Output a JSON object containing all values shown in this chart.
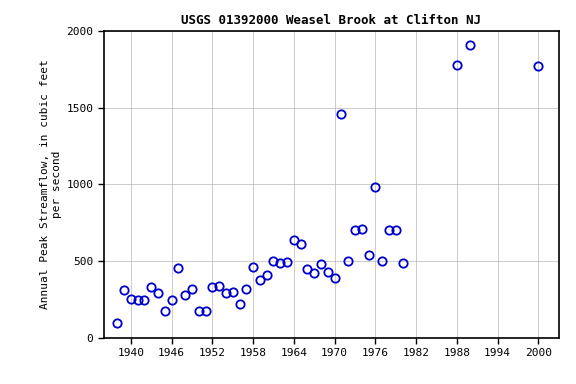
{
  "title": "USGS 01392000 Weasel Brook at Clifton NJ",
  "ylabel": "Annual Peak Streamflow, in cubic feet\nper second",
  "xlim": [
    1936,
    2003
  ],
  "ylim": [
    0,
    2000
  ],
  "xticks": [
    1940,
    1946,
    1952,
    1958,
    1964,
    1970,
    1976,
    1982,
    1988,
    1994,
    2000
  ],
  "yticks": [
    0,
    500,
    1000,
    1500,
    2000
  ],
  "marker_color": "#0000cc",
  "marker_size": 6,
  "data": [
    [
      1938,
      100
    ],
    [
      1939,
      310
    ],
    [
      1940,
      255
    ],
    [
      1941,
      245
    ],
    [
      1942,
      245
    ],
    [
      1943,
      330
    ],
    [
      1944,
      295
    ],
    [
      1945,
      175
    ],
    [
      1946,
      245
    ],
    [
      1947,
      455
    ],
    [
      1948,
      280
    ],
    [
      1949,
      320
    ],
    [
      1950,
      175
    ],
    [
      1951,
      175
    ],
    [
      1952,
      330
    ],
    [
      1953,
      335
    ],
    [
      1954,
      290
    ],
    [
      1955,
      300
    ],
    [
      1956,
      220
    ],
    [
      1957,
      320
    ],
    [
      1958,
      460
    ],
    [
      1959,
      380
    ],
    [
      1960,
      410
    ],
    [
      1961,
      500
    ],
    [
      1962,
      490
    ],
    [
      1963,
      495
    ],
    [
      1964,
      635
    ],
    [
      1965,
      610
    ],
    [
      1966,
      450
    ],
    [
      1967,
      420
    ],
    [
      1968,
      480
    ],
    [
      1969,
      430
    ],
    [
      1970,
      390
    ],
    [
      1971,
      1455
    ],
    [
      1972,
      500
    ],
    [
      1973,
      700
    ],
    [
      1974,
      710
    ],
    [
      1975,
      540
    ],
    [
      1976,
      980
    ],
    [
      1977,
      500
    ],
    [
      1978,
      700
    ],
    [
      1979,
      700
    ],
    [
      1980,
      490
    ],
    [
      1988,
      1780
    ],
    [
      1990,
      1910
    ],
    [
      2000,
      1770
    ]
  ],
  "figwidth": 5.76,
  "figheight": 3.84,
  "dpi": 100,
  "title_fontsize": 9,
  "axis_fontsize": 8,
  "tick_fontsize": 8,
  "bg_color": "#ffffff",
  "grid_color": "#aaaaaa",
  "grid_alpha": 0.7,
  "grid_lw": 0.6
}
